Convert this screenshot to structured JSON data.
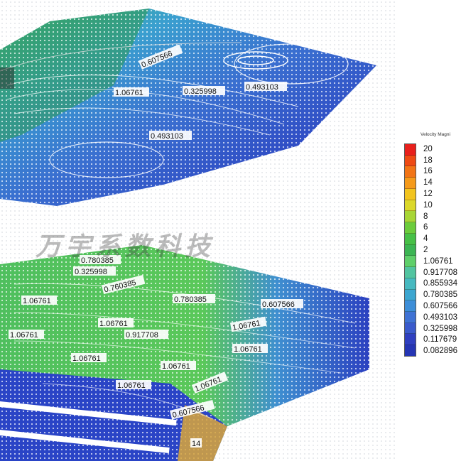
{
  "legend": {
    "title": "Velocity Magni",
    "ticks": [
      "20",
      "18",
      "16",
      "14",
      "12",
      "10",
      "8",
      "6",
      "4",
      "2",
      "1.06761",
      "0.917708",
      "0.855934",
      "0.780385",
      "0.607566",
      "0.493103",
      "0.325998",
      "0.117679",
      "0.082896"
    ],
    "colors": [
      "#e8201c",
      "#ee4a14",
      "#f27416",
      "#f59a1a",
      "#f2c41e",
      "#dbd82a",
      "#a8d636",
      "#6ccc3c",
      "#47c047",
      "#3cb553",
      "#5fcf6a",
      "#52c4a0",
      "#47b9c0",
      "#3ca6d0",
      "#3d8ed8",
      "#3f72d4",
      "#3a5acc",
      "#2f3fc0",
      "#2535b4"
    ]
  },
  "watermark": "万宇系数科技",
  "upper_plane_labels": [
    "0.607566",
    "1.06761",
    "0.325998",
    "0.493103",
    "0.493103"
  ],
  "lower_plane_labels": [
    "0.780385",
    "0.325998",
    "0.760385",
    "1.06761",
    "0.780385",
    "0.607566",
    "1.06761",
    "0.917708",
    "1.06761",
    "1.06761",
    "1.06761",
    "1.06761",
    "1.06761",
    "1.06761",
    "1.06761",
    "0.607566",
    "14"
  ],
  "colors": {
    "low": "#2a3fc4",
    "mid": "#3fa3d4",
    "high": "#55c46a",
    "hot": "#e8a020"
  }
}
